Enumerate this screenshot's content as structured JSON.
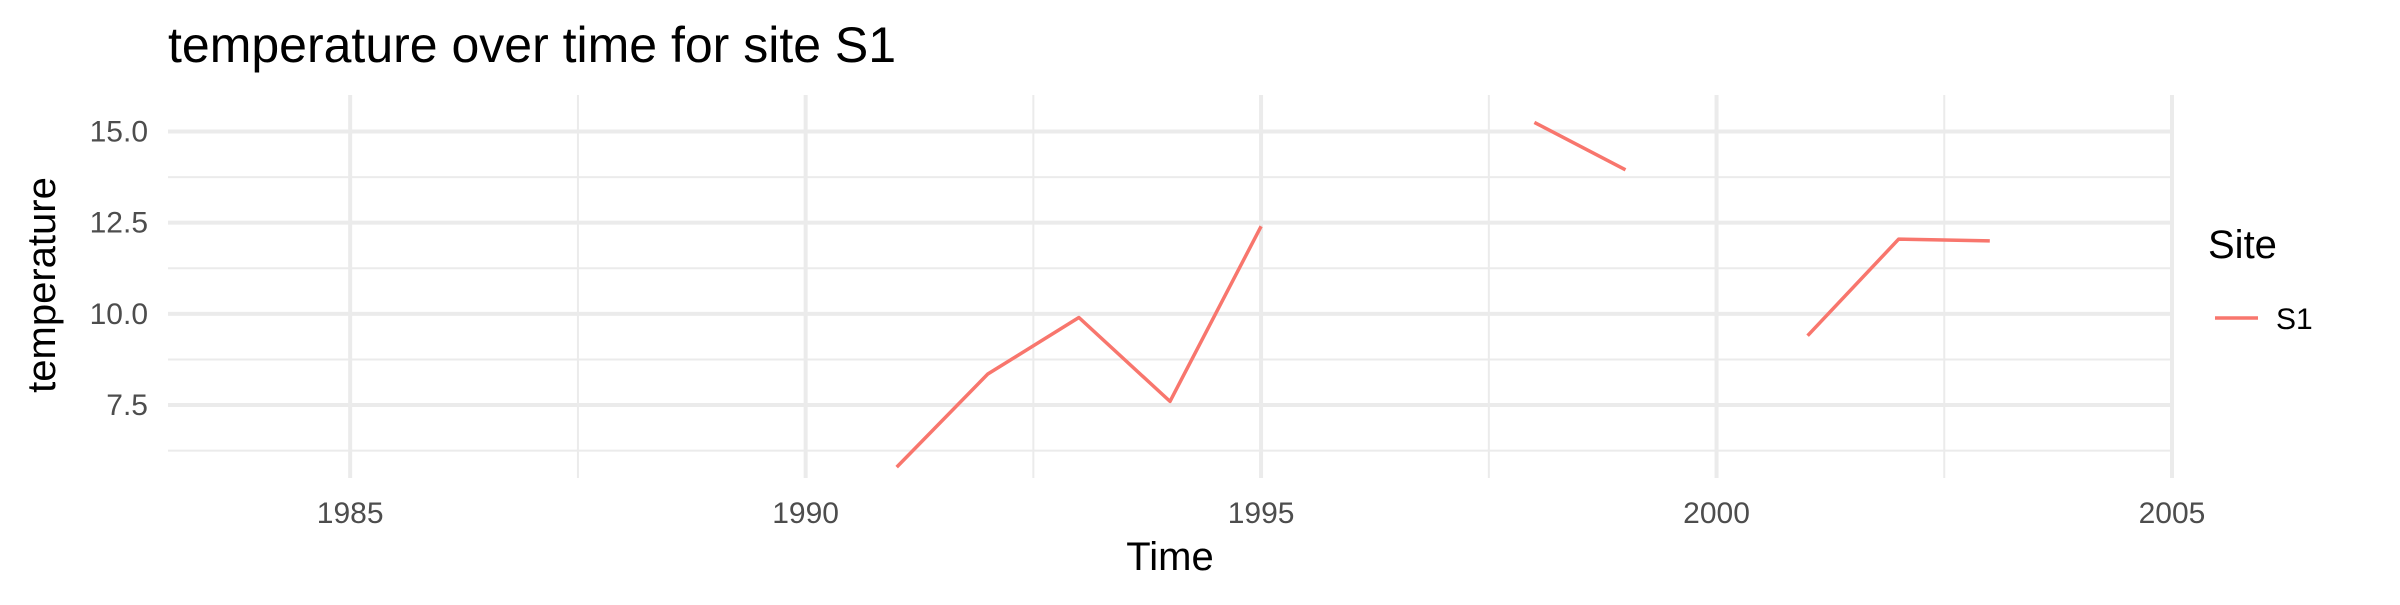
{
  "chart_data": {
    "type": "line",
    "title": "temperature over time for site S1",
    "xlabel": "Time",
    "ylabel": "temperature",
    "xlim": [
      1983,
      2005
    ],
    "ylim": [
      5.5,
      16.0
    ],
    "x_ticks": [
      1985,
      1990,
      1995,
      2000,
      2005
    ],
    "x_tick_labels": [
      "1985",
      "1990",
      "1995",
      "2000",
      "2005"
    ],
    "x_minor_ticks": [
      1987.5,
      1992.5,
      1997.5,
      2002.5
    ],
    "y_ticks": [
      7.5,
      10.0,
      12.5,
      15.0
    ],
    "y_tick_labels": [
      "7.5",
      "10.0",
      "12.5",
      "15.0"
    ],
    "y_minor_ticks": [
      6.25,
      8.75,
      11.25,
      13.75
    ],
    "grid": true,
    "legend": {
      "title": "Site",
      "position": "right"
    },
    "series": [
      {
        "name": "S1",
        "color": "#F8766D",
        "segments": [
          {
            "x": [
              1991,
              1992,
              1993,
              1994,
              1995
            ],
            "y": [
              5.8,
              8.35,
              9.9,
              7.6,
              12.4
            ]
          },
          {
            "x": [
              1998,
              1999
            ],
            "y": [
              15.25,
              13.95
            ]
          },
          {
            "x": [
              2001,
              2002,
              2003
            ],
            "y": [
              9.4,
              12.05,
              12.0
            ]
          }
        ]
      }
    ]
  }
}
